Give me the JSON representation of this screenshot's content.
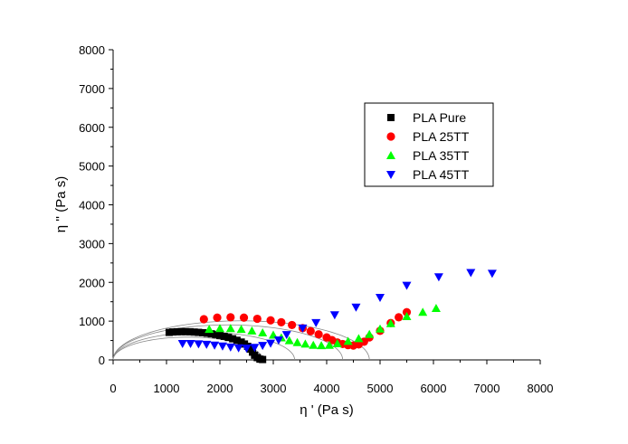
{
  "chart_data": {
    "type": "scatter",
    "title": "",
    "xlabel": "η ' (Pa s)",
    "ylabel": "η '' (Pa s)",
    "xlim": [
      0,
      8000
    ],
    "ylim": [
      0,
      8000
    ],
    "xticks": [
      0,
      1000,
      2000,
      3000,
      4000,
      5000,
      6000,
      7000,
      8000
    ],
    "yticks": [
      0,
      1000,
      2000,
      3000,
      4000,
      5000,
      6000,
      7000,
      8000
    ],
    "legend_position": "upper-right",
    "series": [
      {
        "name": "PLA Pure",
        "marker": "square",
        "color": "#000000",
        "points": [
          [
            1050,
            710
          ],
          [
            1120,
            720
          ],
          [
            1200,
            725
          ],
          [
            1280,
            728
          ],
          [
            1360,
            728
          ],
          [
            1440,
            725
          ],
          [
            1520,
            718
          ],
          [
            1600,
            710
          ],
          [
            1680,
            700
          ],
          [
            1760,
            688
          ],
          [
            1840,
            672
          ],
          [
            1920,
            655
          ],
          [
            2000,
            632
          ],
          [
            2080,
            608
          ],
          [
            2160,
            580
          ],
          [
            2240,
            545
          ],
          [
            2320,
            505
          ],
          [
            2400,
            460
          ],
          [
            2460,
            410
          ],
          [
            2520,
            350
          ],
          [
            2570,
            280
          ],
          [
            2610,
            200
          ],
          [
            2650,
            120
          ],
          [
            2700,
            60
          ],
          [
            2750,
            20
          ],
          [
            2800,
            10
          ]
        ]
      },
      {
        "name": "PLA 25TT",
        "marker": "circle",
        "color": "#ff0000",
        "points": [
          [
            1700,
            1050
          ],
          [
            1950,
            1090
          ],
          [
            2200,
            1100
          ],
          [
            2450,
            1090
          ],
          [
            2700,
            1060
          ],
          [
            2950,
            1020
          ],
          [
            3150,
            970
          ],
          [
            3350,
            900
          ],
          [
            3550,
            820
          ],
          [
            3700,
            740
          ],
          [
            3850,
            660
          ],
          [
            4000,
            580
          ],
          [
            4100,
            510
          ],
          [
            4200,
            450
          ],
          [
            4300,
            410
          ],
          [
            4400,
            380
          ],
          [
            4500,
            370
          ],
          [
            4600,
            400
          ],
          [
            4700,
            470
          ],
          [
            4800,
            580
          ],
          [
            5000,
            750
          ],
          [
            5200,
            950
          ],
          [
            5350,
            1100
          ],
          [
            5500,
            1230
          ]
        ]
      },
      {
        "name": "PLA 35TT",
        "marker": "triangle-up",
        "color": "#00ff00",
        "points": [
          [
            1800,
            790
          ],
          [
            2000,
            810
          ],
          [
            2200,
            810
          ],
          [
            2400,
            790
          ],
          [
            2600,
            750
          ],
          [
            2800,
            700
          ],
          [
            3000,
            640
          ],
          [
            3150,
            570
          ],
          [
            3300,
            500
          ],
          [
            3450,
            450
          ],
          [
            3600,
            410
          ],
          [
            3750,
            380
          ],
          [
            3900,
            370
          ],
          [
            4050,
            380
          ],
          [
            4200,
            420
          ],
          [
            4400,
            480
          ],
          [
            4600,
            550
          ],
          [
            4800,
            660
          ],
          [
            5000,
            800
          ],
          [
            5200,
            940
          ],
          [
            5500,
            1120
          ],
          [
            5800,
            1230
          ],
          [
            6050,
            1330
          ]
        ]
      },
      {
        "name": "PLA 45TT",
        "marker": "triangle-down",
        "color": "#0000ff",
        "points": [
          [
            1300,
            420
          ],
          [
            1450,
            420
          ],
          [
            1600,
            410
          ],
          [
            1750,
            400
          ],
          [
            1900,
            380
          ],
          [
            2050,
            355
          ],
          [
            2200,
            330
          ],
          [
            2350,
            310
          ],
          [
            2500,
            300
          ],
          [
            2650,
            320
          ],
          [
            2800,
            370
          ],
          [
            2950,
            430
          ],
          [
            3100,
            510
          ],
          [
            3250,
            650
          ],
          [
            3550,
            820
          ],
          [
            3800,
            960
          ],
          [
            4150,
            1160
          ],
          [
            4550,
            1360
          ],
          [
            5000,
            1610
          ],
          [
            5500,
            1920
          ],
          [
            6100,
            2140
          ],
          [
            6700,
            2250
          ],
          [
            7100,
            2230
          ]
        ]
      }
    ],
    "fit_arcs": [
      {
        "center": 1400,
        "radius": 1400
      },
      {
        "center": 1700,
        "radius": 1700
      },
      {
        "center": 2150,
        "radius": 2150
      },
      {
        "center": 2400,
        "radius": 2400
      }
    ]
  }
}
